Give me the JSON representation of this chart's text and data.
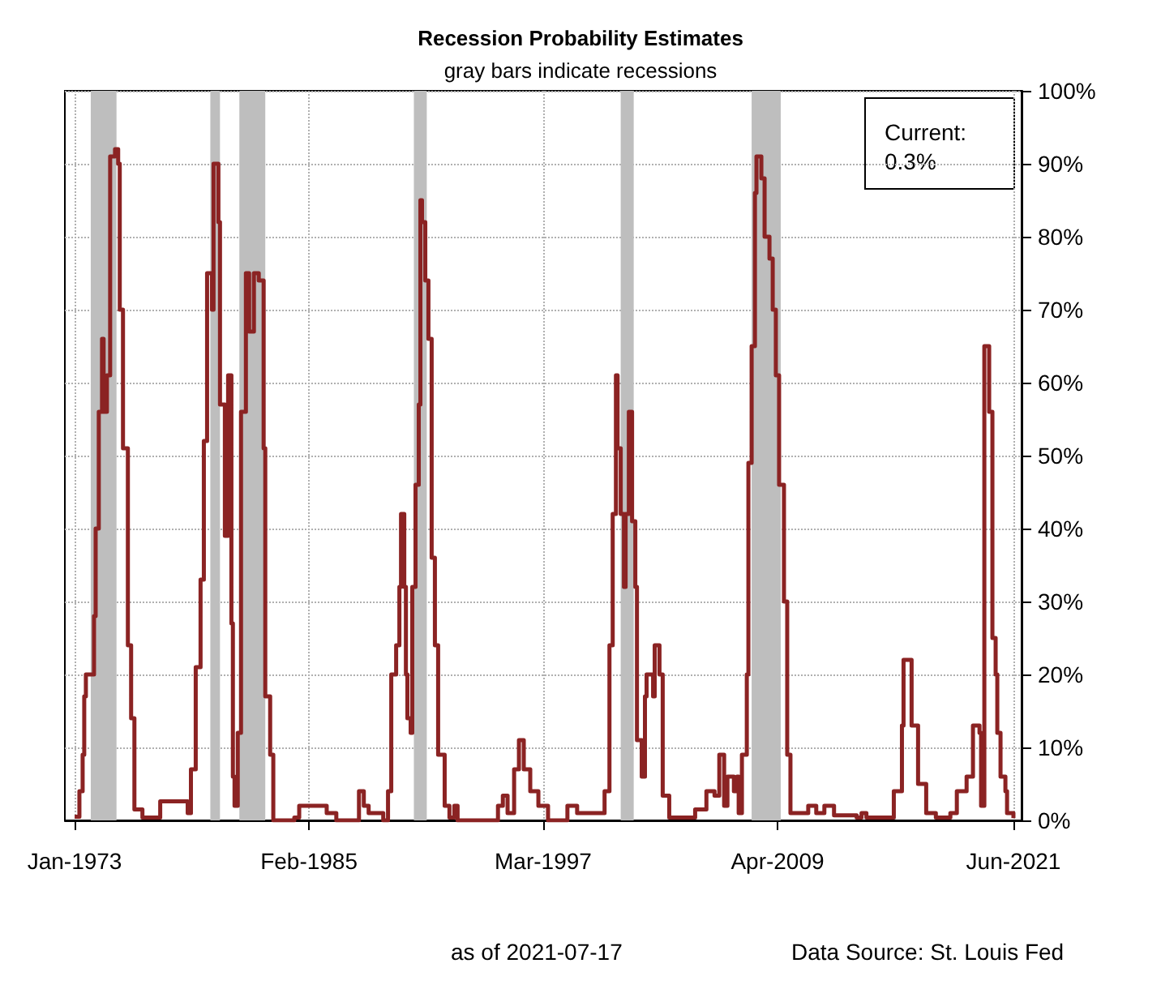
{
  "chart_data": {
    "type": "step",
    "title": "Recession Probability Estimates",
    "subtitle": "gray bars indicate recessions",
    "x": [
      "1973-01",
      "1973-04",
      "1973-06",
      "1973-07",
      "1973-08",
      "1973-12",
      "1974-01",
      "1974-02",
      "1974-04",
      "1974-06",
      "1974-07",
      "1974-09",
      "1974-11",
      "1975-02",
      "1975-04",
      "1975-05",
      "1975-07",
      "1975-10",
      "1975-12",
      "1976-02",
      "1976-07",
      "1977-03",
      "1977-06",
      "1978-09",
      "1978-11",
      "1979-01",
      "1979-04",
      "1979-07",
      "1979-09",
      "1979-11",
      "1980-02",
      "1980-03",
      "1980-06",
      "1980-07",
      "1980-10",
      "1980-12",
      "1981-02",
      "1981-03",
      "1981-04",
      "1981-06",
      "1981-08",
      "1981-11",
      "1982-01",
      "1982-04",
      "1982-07",
      "1982-10",
      "1982-11",
      "1983-02",
      "1983-04",
      "1984-05",
      "1984-08",
      "1986-01",
      "1986-07",
      "1987-09",
      "1987-12",
      "1988-03",
      "1988-08",
      "1988-12",
      "1989-03",
      "1989-05",
      "1989-08",
      "1989-10",
      "1989-11",
      "1990-01",
      "1990-02",
      "1990-03",
      "1990-05",
      "1990-06",
      "1990-08",
      "1990-10",
      "1990-11",
      "1990-12",
      "1991-02",
      "1991-04",
      "1991-06",
      "1991-08",
      "1991-10",
      "1992-02",
      "1992-05",
      "1992-08",
      "1992-10",
      "1994-09",
      "1994-11",
      "1995-02",
      "1995-05",
      "1995-09",
      "1995-12",
      "1996-03",
      "1996-07",
      "1996-12",
      "1997-06",
      "1998-04",
      "1998-06",
      "1998-09",
      "1998-12",
      "2000-02",
      "2000-05",
      "2000-08",
      "2000-10",
      "2000-12",
      "2001-01",
      "2001-03",
      "2001-05",
      "2001-06",
      "2001-08",
      "2001-10",
      "2001-12",
      "2002-01",
      "2002-04",
      "2002-06",
      "2002-07",
      "2002-11",
      "2002-12",
      "2003-03",
      "2003-05",
      "2003-09",
      "2004-07",
      "2004-10",
      "2005-01",
      "2005-08",
      "2006-01",
      "2006-04",
      "2006-07",
      "2006-09",
      "2007-01",
      "2007-03",
      "2007-04",
      "2007-06",
      "2007-09",
      "2007-10",
      "2007-12",
      "2008-02",
      "2008-03",
      "2008-06",
      "2008-08",
      "2008-11",
      "2009-01",
      "2009-03",
      "2009-05",
      "2009-08",
      "2009-10",
      "2009-12",
      "2010-04",
      "2010-11",
      "2011-04",
      "2011-09",
      "2012-03",
      "2013-05",
      "2013-08",
      "2013-11",
      "2015-01",
      "2015-04",
      "2015-09",
      "2015-10",
      "2016-02",
      "2016-03",
      "2016-07",
      "2016-12",
      "2017-06",
      "2018-03",
      "2018-07",
      "2019-01",
      "2019-05",
      "2019-09",
      "2019-10",
      "2019-12",
      "2020-03",
      "2020-05",
      "2020-07",
      "2020-08",
      "2020-10",
      "2021-01",
      "2021-02",
      "2021-06"
    ],
    "series": [
      {
        "color": "#8b2323",
        "values": [
          0.5,
          4,
          9,
          17,
          20,
          20,
          28,
          40,
          56,
          66,
          56,
          61,
          91,
          92,
          90,
          70,
          51,
          24,
          14,
          1.5,
          0.4,
          0.4,
          2.6,
          2.6,
          1,
          7,
          21,
          33,
          52,
          75,
          70,
          90,
          82,
          57,
          39,
          61,
          27,
          6,
          2,
          12,
          56,
          75,
          67,
          75,
          74,
          51,
          17,
          9,
          0,
          0.4,
          2,
          1,
          0,
          4,
          2,
          1,
          1,
          0,
          4,
          20,
          24,
          32,
          42,
          32,
          20,
          14,
          12,
          32,
          46,
          57,
          85,
          82,
          74,
          66,
          36,
          24,
          9,
          2,
          0.4,
          2,
          0,
          0,
          2,
          3.4,
          1,
          7,
          11,
          7,
          4,
          2,
          0,
          0,
          2,
          2,
          1,
          1,
          4,
          24,
          42,
          61,
          51,
          42,
          32,
          42,
          56,
          41,
          32,
          11,
          6,
          17,
          20,
          17,
          24,
          20,
          3.4,
          0.4,
          0.4,
          0.4,
          1.5,
          4,
          3.4,
          9,
          2,
          6,
          4,
          6,
          1,
          9,
          20,
          49,
          65,
          86,
          91,
          88,
          80,
          77,
          70,
          61,
          46,
          30,
          9,
          1,
          1,
          2,
          1,
          2,
          0.7,
          0.4,
          1,
          0.4,
          0.4,
          4,
          13,
          22,
          22,
          13,
          5,
          1,
          0.4,
          1,
          4,
          6,
          13,
          12,
          2,
          65,
          56,
          25,
          20,
          12,
          6,
          4,
          1,
          0.3
        ]
      }
    ],
    "bands": [
      {
        "axis": "x",
        "from": "1973-11",
        "to": "1975-03",
        "color": "#bebebe"
      },
      {
        "axis": "x",
        "from": "1980-01",
        "to": "1980-07",
        "color": "#bebebe"
      },
      {
        "axis": "x",
        "from": "1981-07",
        "to": "1982-11",
        "color": "#bebebe"
      },
      {
        "axis": "x",
        "from": "1990-07",
        "to": "1991-03",
        "color": "#bebebe"
      },
      {
        "axis": "x",
        "from": "2001-03",
        "to": "2001-11",
        "color": "#bebebe"
      },
      {
        "axis": "x",
        "from": "2007-12",
        "to": "2009-06",
        "color": "#bebebe"
      }
    ],
    "xlim": [
      "1972-07",
      "2021-11"
    ],
    "xticks": [
      {
        "value": "1973-01",
        "label": "Jan-1973"
      },
      {
        "value": "1985-02",
        "label": "Feb-1985"
      },
      {
        "value": "1997-03",
        "label": "Mar-1997"
      },
      {
        "value": "2009-04",
        "label": "Apr-2009"
      },
      {
        "value": "2021-06",
        "label": "Jun-2021"
      }
    ],
    "ylim": [
      0,
      100
    ],
    "yticks": [
      {
        "value": 0,
        "label": "0%"
      },
      {
        "value": 10,
        "label": "10%"
      },
      {
        "value": 20,
        "label": "20%"
      },
      {
        "value": 30,
        "label": "30%"
      },
      {
        "value": 40,
        "label": "40%"
      },
      {
        "value": 50,
        "label": "50%"
      },
      {
        "value": 60,
        "label": "60%"
      },
      {
        "value": 70,
        "label": "70%"
      },
      {
        "value": 80,
        "label": "80%"
      },
      {
        "value": 90,
        "label": "90%"
      },
      {
        "value": 100,
        "label": "100%"
      }
    ],
    "grid": true,
    "annotations": [
      "Current:\n0.3%",
      "as of 2021-07-17",
      "Data Source: St. Louis Fed"
    ]
  }
}
